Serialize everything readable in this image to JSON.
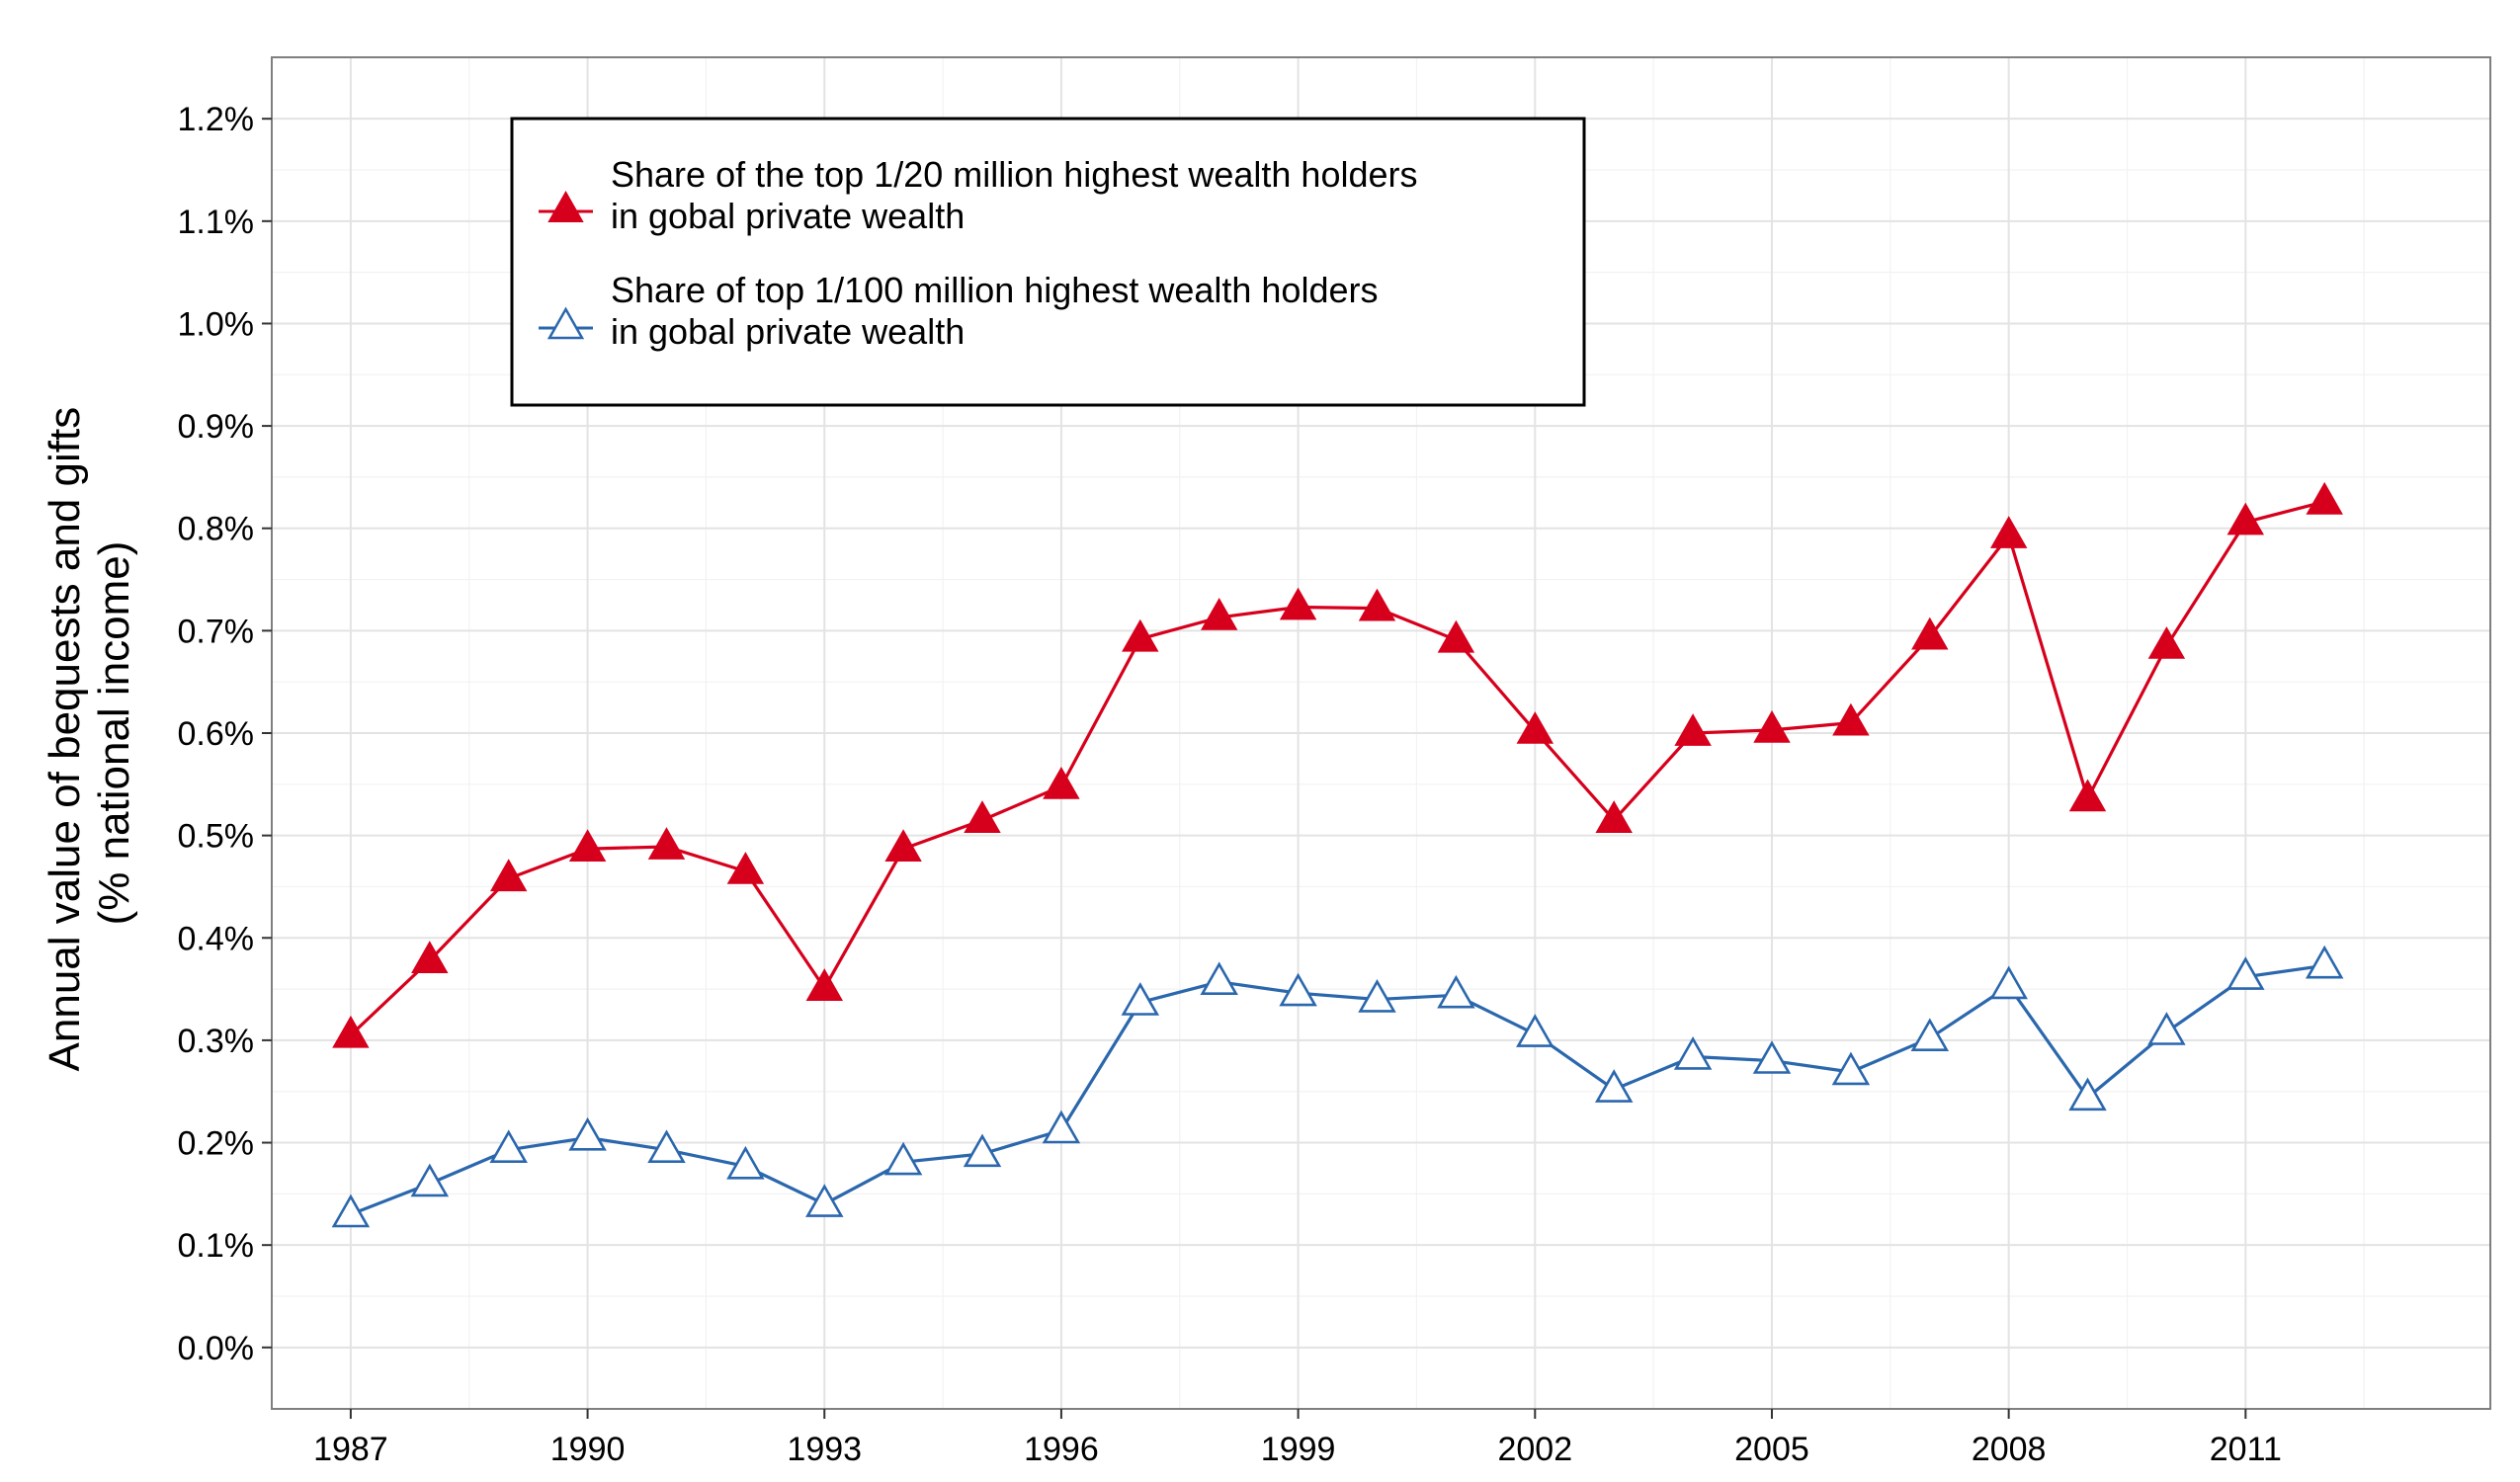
{
  "chart_data": {
    "type": "line",
    "title": "",
    "xlabel": "",
    "ylabel_lines": [
      "Annual value of bequests and gifts",
      "(% national income)"
    ],
    "x": [
      1987,
      1988,
      1989,
      1990,
      1991,
      1992,
      1993,
      1994,
      1995,
      1996,
      1997,
      1998,
      1999,
      2000,
      2001,
      2002,
      2003,
      2004,
      2005,
      2006,
      2007,
      2008,
      2009,
      2010,
      2011,
      2012
    ],
    "x_ticks": [
      "1987",
      "1990",
      "1993",
      "1996",
      "1999",
      "2002",
      "2005",
      "2008",
      "2011"
    ],
    "y_ticks": [
      "0.0%",
      "0.1%",
      "0.2%",
      "0.3%",
      "0.4%",
      "0.5%",
      "0.6%",
      "0.7%",
      "0.8%",
      "0.9%",
      "1.0%",
      "1.1%",
      "1.2%"
    ],
    "xlim": [
      1986,
      2014.1
    ],
    "ylim": [
      -0.06,
      1.26
    ],
    "grid": true,
    "legend_position": "top-left",
    "series": [
      {
        "name_lines": [
          "Share of the top 1/20 million highest wealth holders",
          "in gobal private wealth"
        ],
        "color": "#d7001c",
        "marker": "filled-triangle",
        "values": [
          0.305,
          0.378,
          0.458,
          0.487,
          0.489,
          0.465,
          0.351,
          0.487,
          0.515,
          0.548,
          0.692,
          0.713,
          0.723,
          0.722,
          0.691,
          0.602,
          0.515,
          0.6,
          0.603,
          0.61,
          0.694,
          0.793,
          0.536,
          0.685,
          0.806,
          0.826
        ]
      },
      {
        "name_lines": [
          "Share of top 1/100 million highest wealth holders",
          "in gobal private wealth"
        ],
        "color": "#2b67ad",
        "marker": "open-triangle",
        "values": [
          0.13,
          0.16,
          0.193,
          0.205,
          0.193,
          0.177,
          0.14,
          0.181,
          0.189,
          0.212,
          0.337,
          0.357,
          0.346,
          0.34,
          0.344,
          0.306,
          0.252,
          0.284,
          0.28,
          0.269,
          0.302,
          0.353,
          0.244,
          0.308,
          0.362,
          0.373
        ]
      }
    ]
  }
}
